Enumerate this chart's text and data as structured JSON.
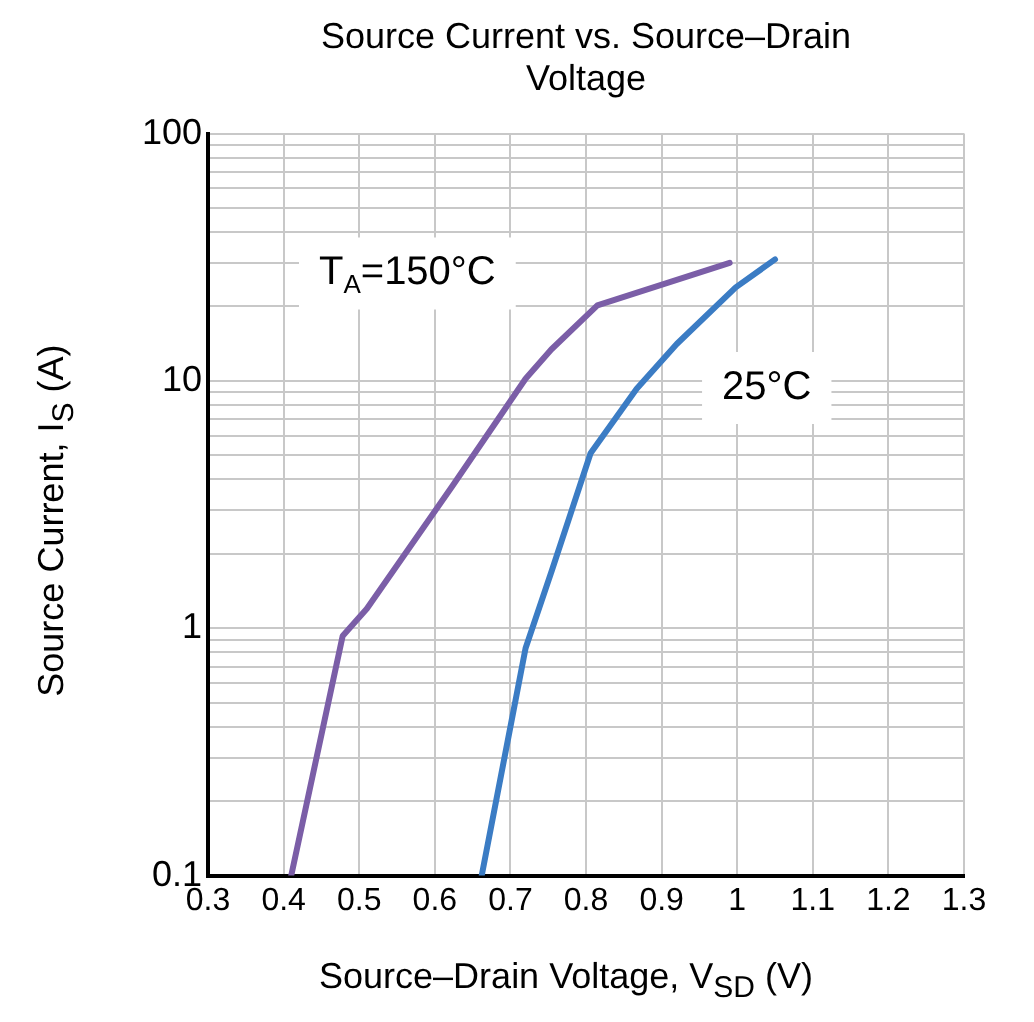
{
  "chart_data": {
    "type": "line",
    "title": "Source Current vs. Source–Drain Voltage",
    "xlabel": "Source–Drain Voltage, V$_{SD}$ (V)",
    "ylabel": "Source Current, I$_{S}$ (A)",
    "series": [
      {
        "name": "T$_{A}$=150°C",
        "color": "#7b5ea7",
        "x": [
          0.41,
          0.478,
          0.51,
          0.623,
          0.72,
          0.754,
          0.815,
          0.99
        ],
        "values": [
          0.1,
          0.93,
          1.2,
          3.75,
          10.2,
          13.4,
          20.2,
          30
        ]
      },
      {
        "name": "25°C",
        "color": "#3b7cc4",
        "x": [
          0.662,
          0.72,
          0.755,
          0.806,
          0.867,
          0.92,
          0.998,
          1.05
        ],
        "values": [
          0.1,
          0.83,
          1.72,
          5.1,
          9.3,
          14.1,
          23.9,
          31
        ]
      }
    ],
    "xlim": [
      0.3,
      1.3
    ],
    "xticks": [
      0.3,
      0.4,
      0.5,
      0.6,
      0.7,
      0.8,
      0.9,
      1,
      1.1,
      1.2,
      1.3
    ],
    "ylim": [
      0.1,
      100
    ],
    "yticks": [
      0.1,
      {
        "value": 0.2,
        "label": null
      },
      {
        "value": 0.3,
        "label": null
      },
      {
        "value": 0.4,
        "label": null
      },
      {
        "value": 0.5,
        "label": null
      },
      {
        "value": 0.6,
        "label": null
      },
      {
        "value": 0.7,
        "label": null
      },
      {
        "value": 0.8,
        "label": null
      },
      {
        "value": 0.9,
        "label": null
      },
      1,
      {
        "value": 2,
        "label": null
      },
      {
        "value": 3,
        "label": null
      },
      {
        "value": 4,
        "label": null
      },
      {
        "value": 5,
        "label": null
      },
      {
        "value": 6,
        "label": null
      },
      {
        "value": 7,
        "label": null
      },
      {
        "value": 8,
        "label": null
      },
      {
        "value": 9,
        "label": null
      },
      10,
      {
        "value": 20,
        "label": null
      },
      {
        "value": 30,
        "label": null
      },
      {
        "value": 40,
        "label": null
      },
      {
        "value": 50,
        "label": null
      },
      {
        "value": 60,
        "label": null
      },
      {
        "value": 70,
        "label": null
      },
      {
        "value": 80,
        "label": null
      },
      {
        "value": 90,
        "label": null
      },
      100
    ],
    "log": "y",
    "grid": true,
    "legend": false,
    "marker": "none",
    "line_style": "solid"
  }
}
